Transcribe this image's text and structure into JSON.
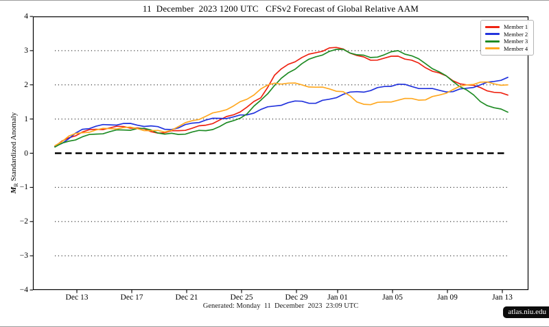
{
  "title": "11  December  2023 1200 UTC   CFSv2 Forecast of Global Relative AAM",
  "footer": {
    "generated": "Generated: Monday  11  December  2023  23:09 UTC",
    "site_badge": "atlas.niu.edu"
  },
  "chart_data": {
    "type": "line",
    "title": "11 December 2023 1200 UTC CFSv2 Forecast of Global Relative AAM",
    "ylabel": {
      "symbol": "M",
      "subscript": "R",
      "text": "Standardized Anomaly"
    },
    "ylim": [
      -4,
      4
    ],
    "yticks": [
      4,
      3,
      2,
      1,
      0,
      -1,
      -2,
      -3,
      -4
    ],
    "x_unit": "days since forecast start (11 Dec 2023 1200 UTC)",
    "x_step": 1,
    "x_range_days": [
      -1.6,
      34.5
    ],
    "xticks": [
      {
        "label": "Dec 13",
        "d": 1.6
      },
      {
        "label": "Dec 17",
        "d": 5.6
      },
      {
        "label": "Dec 21",
        "d": 9.6
      },
      {
        "label": "Dec 25",
        "d": 13.6
      },
      {
        "label": "Dec 29",
        "d": 17.6
      },
      {
        "label": "Jan 01",
        "d": 20.6
      },
      {
        "label": "Jan 05",
        "d": 24.6
      },
      {
        "label": "Jan 09",
        "d": 28.6
      },
      {
        "label": "Jan 13",
        "d": 32.6
      }
    ],
    "grid": {
      "dotted_levels": [
        3,
        2,
        1,
        -1,
        -2,
        -3
      ],
      "zero_line_style": "dashed-black"
    },
    "legend_position": "top-right",
    "series": [
      {
        "name": "Member 1",
        "color": "#ee2211",
        "values": [
          0.2,
          0.45,
          0.62,
          0.7,
          0.74,
          0.78,
          0.74,
          0.63,
          0.6,
          0.66,
          0.73,
          0.82,
          0.97,
          1.12,
          1.35,
          1.62,
          2.28,
          2.6,
          2.8,
          2.94,
          3.08,
          3.05,
          2.86,
          2.72,
          2.78,
          2.84,
          2.72,
          2.5,
          2.35,
          2.12,
          2.0,
          1.92,
          1.78,
          1.7
        ]
      },
      {
        "name": "Member 2",
        "color": "#2233dd",
        "values": [
          0.2,
          0.42,
          0.7,
          0.79,
          0.83,
          0.87,
          0.82,
          0.8,
          0.7,
          0.74,
          0.88,
          0.97,
          1.02,
          1.06,
          1.12,
          1.28,
          1.38,
          1.48,
          1.52,
          1.46,
          1.58,
          1.72,
          1.8,
          1.83,
          1.95,
          2.02,
          1.95,
          1.89,
          1.84,
          1.8,
          1.9,
          2.0,
          2.1,
          2.22
        ]
      },
      {
        "name": "Member 3",
        "color": "#1f8b24",
        "values": [
          0.18,
          0.35,
          0.48,
          0.56,
          0.63,
          0.68,
          0.72,
          0.68,
          0.56,
          0.55,
          0.62,
          0.66,
          0.78,
          0.95,
          1.15,
          1.55,
          1.98,
          2.35,
          2.62,
          2.82,
          2.98,
          3.04,
          2.88,
          2.8,
          2.88,
          3.0,
          2.85,
          2.62,
          2.38,
          2.1,
          1.85,
          1.51,
          1.33,
          1.2
        ]
      },
      {
        "name": "Member 4",
        "color": "#ffa820",
        "values": [
          0.22,
          0.5,
          0.6,
          0.68,
          0.72,
          0.75,
          0.72,
          0.66,
          0.62,
          0.78,
          0.95,
          1.08,
          1.22,
          1.38,
          1.58,
          1.88,
          2.05,
          2.05,
          2.0,
          1.93,
          1.88,
          1.8,
          1.5,
          1.42,
          1.5,
          1.55,
          1.6,
          1.56,
          1.7,
          1.86,
          2.0,
          2.08,
          2.03,
          2.0
        ]
      }
    ]
  }
}
